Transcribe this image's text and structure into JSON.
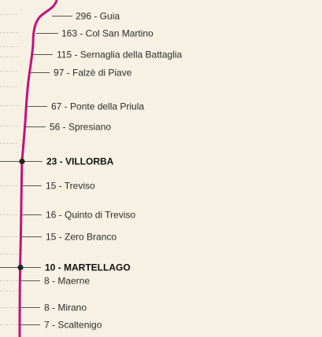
{
  "map": {
    "route_color": "#c2127d",
    "places": [
      {
        "label": "296 - Guia",
        "altitude": 296,
        "name": "Guia",
        "major": false
      },
      {
        "label": "163 - Col San Martino",
        "altitude": 163,
        "name": "Col San Martino",
        "major": false
      },
      {
        "label": "115 - Sernaglia della Battaglia",
        "altitude": 115,
        "name": "Sernaglia della Battaglia",
        "major": false
      },
      {
        "label": "97 - Falzè di Piave",
        "altitude": 97,
        "name": "Falzè di Piave",
        "major": false
      },
      {
        "label": "67 - Ponte della Priula",
        "altitude": 67,
        "name": "Ponte della Priula",
        "major": false
      },
      {
        "label": "56 - Spresiano",
        "altitude": 56,
        "name": "Spresiano",
        "major": false
      },
      {
        "label": "23 - VILLORBA",
        "altitude": 23,
        "name": "VILLORBA",
        "major": true
      },
      {
        "label": "15 - Treviso",
        "altitude": 15,
        "name": "Treviso",
        "major": false
      },
      {
        "label": "16 - Quinto di Treviso",
        "altitude": 16,
        "name": "Quinto di Treviso",
        "major": false
      },
      {
        "label": "15 - Zero Branco",
        "altitude": 15,
        "name": "Zero Branco",
        "major": false
      },
      {
        "label": "10 - MARTELLAGO",
        "altitude": 10,
        "name": "MARTELLAGO",
        "major": true
      },
      {
        "label": "8 - Maerne",
        "altitude": 8,
        "name": "Maerne",
        "major": false
      },
      {
        "label": "8 - Mirano",
        "altitude": 8,
        "name": "Mirano",
        "major": false
      },
      {
        "label": "7 - Scaltenigo",
        "altitude": 7,
        "name": "Scaltenigo",
        "major": false
      }
    ]
  }
}
